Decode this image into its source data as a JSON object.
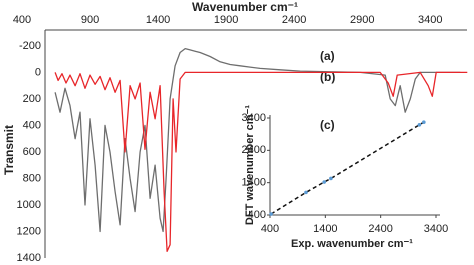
{
  "chart_data": [
    {
      "type": "line",
      "title": "Wavenumber cm⁻¹",
      "y_label": "Transmit",
      "xlim": [
        400,
        3670
      ],
      "xticks": [
        400,
        900,
        1400,
        1900,
        2400,
        2900,
        3400
      ],
      "ylim": [
        -320,
        1400
      ],
      "yticks": [
        -200,
        0,
        200,
        400,
        600,
        800,
        1000,
        1200,
        1400
      ],
      "y_reversed": true,
      "grid": false,
      "series": [
        {
          "name": "(a)",
          "color": "#6e6e6e",
          "x": [
            643,
            679,
            716,
            753,
            790,
            826,
            863,
            900,
            937,
            974,
            1010,
            1047,
            1084,
            1121,
            1157,
            1194,
            1231,
            1268,
            1304,
            1341,
            1378,
            1415,
            1437,
            1459,
            1488,
            1525,
            1562,
            1599,
            1635,
            1672,
            1709,
            1782,
            1856,
            1929,
            2003,
            2076,
            2150,
            2297,
            2444,
            2665,
            2885,
            3069,
            3106,
            3143,
            3179,
            3216,
            3253,
            3290,
            3326,
            3474,
            3621
          ],
          "values": [
            150,
            300,
            120,
            250,
            500,
            300,
            1000,
            350,
            700,
            1200,
            400,
            600,
            900,
            1150,
            500,
            800,
            1050,
            600,
            400,
            950,
            700,
            1100,
            1200,
            800,
            200,
            -50,
            -150,
            -180,
            -170,
            -160,
            -150,
            -120,
            -80,
            -60,
            -50,
            -40,
            -30,
            -20,
            -10,
            -5,
            0,
            20,
            200,
            250,
            100,
            300,
            200,
            50,
            0,
            0,
            0
          ]
        },
        {
          "name": "(b)",
          "color": "#e8262a",
          "x": [
            643,
            665,
            694,
            723,
            753,
            790,
            826,
            863,
            900,
            937,
            974,
            1010,
            1047,
            1084,
            1121,
            1157,
            1194,
            1231,
            1268,
            1304,
            1341,
            1378,
            1415,
            1444,
            1466,
            1488,
            1510,
            1532,
            1562,
            1599,
            1856,
            2444,
            3032,
            3091,
            3128,
            3157,
            3326,
            3385,
            3415,
            3444,
            3672
          ],
          "values": [
            0,
            60,
            10,
            80,
            20,
            100,
            10,
            120,
            20,
            90,
            30,
            130,
            40,
            150,
            60,
            600,
            100,
            200,
            80,
            580,
            150,
            350,
            100,
            900,
            1350,
            1300,
            200,
            600,
            50,
            0,
            0,
            0,
            0,
            80,
            180,
            20,
            0,
            100,
            180,
            0,
            0
          ]
        }
      ]
    },
    {
      "type": "scatter",
      "annotation": "(c)",
      "x_label": "Exp. wavenumber cm⁻¹",
      "y_label": "DFT wavenumber cm⁻¹",
      "xlim": [
        400,
        3400
      ],
      "xticks": [
        400,
        1400,
        2400,
        3400
      ],
      "ylim": [
        400,
        3400
      ],
      "yticks": [
        400,
        1400,
        2400,
        3400
      ],
      "color": "#5b9bd5",
      "trendline": true,
      "x": [
        420,
        1050,
        1380,
        1500,
        3100,
        3180
      ],
      "values": [
        430,
        1100,
        1420,
        1530,
        3190,
        3270
      ]
    }
  ]
}
